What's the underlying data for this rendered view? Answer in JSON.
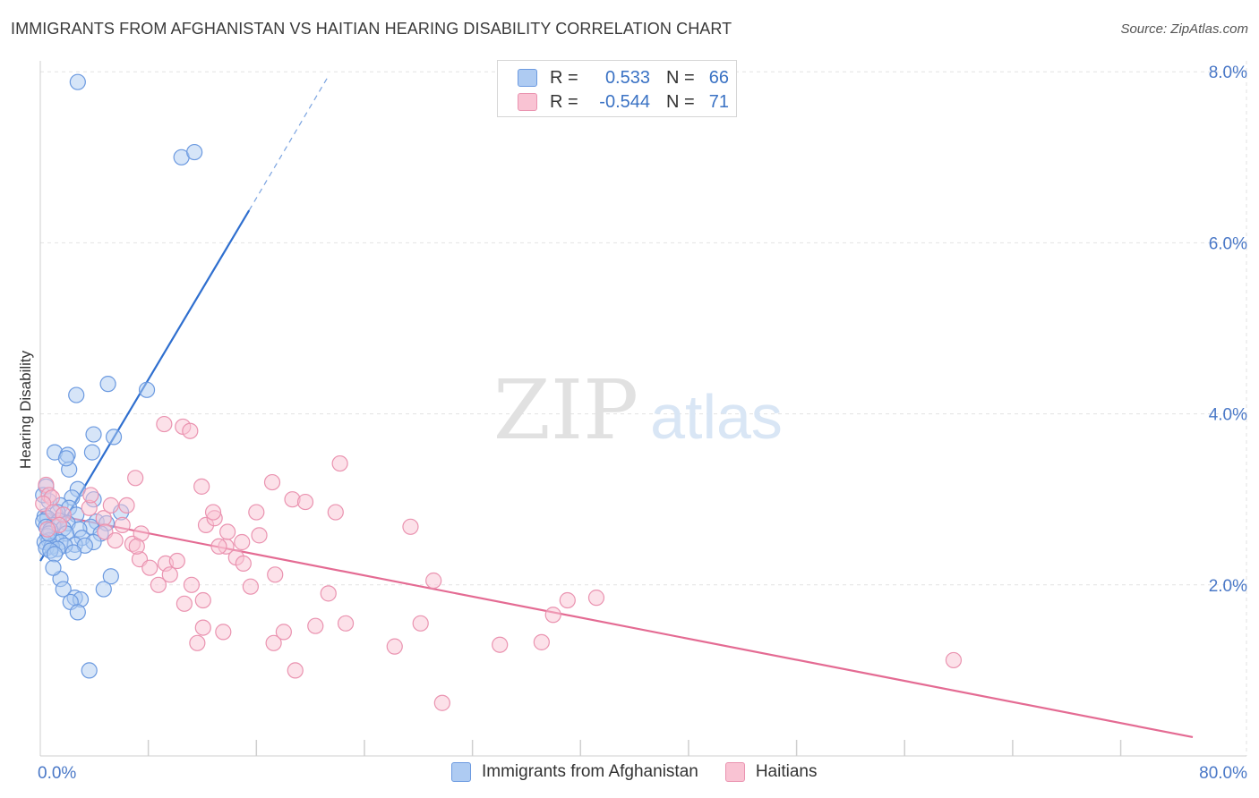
{
  "title": "IMMIGRANTS FROM AFGHANISTAN VS HAITIAN HEARING DISABILITY CORRELATION CHART",
  "source": "Source: ZipAtlas.com",
  "watermark": {
    "zip": "ZIP",
    "atlas": "atlas"
  },
  "legend": {
    "rows": [
      {
        "r_label": "R =",
        "r_value": "0.533",
        "n_label": "N =",
        "n_value": "66",
        "fill": "#aecbf2",
        "stroke": "#6c9ae0"
      },
      {
        "r_label": "R =",
        "r_value": "-0.544",
        "n_label": "N =",
        "n_value": "71",
        "fill": "#f9c3d3",
        "stroke": "#ea93b0"
      }
    ]
  },
  "chart_data": {
    "type": "scatter",
    "title": "IMMIGRANTS FROM AFGHANISTAN VS HAITIAN HEARING DISABILITY CORRELATION CHART",
    "xlabel": "",
    "ylabel": "Hearing Disability",
    "xlim": [
      0,
      80
    ],
    "ylim": [
      0,
      8.3
    ],
    "x_tick_labels": [
      {
        "value": 0,
        "label": "0.0%"
      },
      {
        "value": 80,
        "label": "80.0%"
      }
    ],
    "x_minor_ticks": [
      7.5,
      15,
      22.5,
      30,
      37.5,
      45,
      52.5,
      60,
      67.5,
      75
    ],
    "y_ticks": [
      {
        "value": 2,
        "label": "2.0%"
      },
      {
        "value": 4,
        "label": "4.0%"
      },
      {
        "value": 6,
        "label": "6.0%"
      },
      {
        "value": 8,
        "label": "8.0%"
      }
    ],
    "grid": true,
    "series": [
      {
        "name": "Immigrants from Afghanistan",
        "color": "#6c9ae0",
        "fill": "#aecbf2",
        "points": [
          [
            2.6,
            7.88
          ],
          [
            9.8,
            7.0
          ],
          [
            10.7,
            7.06
          ],
          [
            4.7,
            4.35
          ],
          [
            2.5,
            4.22
          ],
          [
            7.4,
            4.28
          ],
          [
            5.1,
            3.73
          ],
          [
            1.0,
            3.55
          ],
          [
            1.9,
            3.52
          ],
          [
            3.7,
            3.76
          ],
          [
            3.6,
            3.55
          ],
          [
            2.0,
            3.35
          ],
          [
            1.8,
            3.48
          ],
          [
            0.4,
            3.15
          ],
          [
            2.6,
            3.12
          ],
          [
            2.2,
            3.02
          ],
          [
            3.7,
            3.0
          ],
          [
            0.6,
            2.98
          ],
          [
            1.4,
            2.93
          ],
          [
            2.0,
            2.9
          ],
          [
            1.2,
            2.85
          ],
          [
            5.6,
            2.85
          ],
          [
            2.5,
            2.82
          ],
          [
            0.3,
            2.8
          ],
          [
            0.5,
            2.78
          ],
          [
            1.3,
            2.75
          ],
          [
            0.2,
            2.74
          ],
          [
            1.9,
            2.72
          ],
          [
            3.9,
            2.74
          ],
          [
            4.6,
            2.72
          ],
          [
            0.9,
            2.7
          ],
          [
            0.4,
            2.68
          ],
          [
            3.5,
            2.68
          ],
          [
            1.6,
            2.66
          ],
          [
            2.7,
            2.65
          ],
          [
            0.7,
            2.64
          ],
          [
            4.2,
            2.6
          ],
          [
            1.8,
            2.6
          ],
          [
            0.5,
            2.57
          ],
          [
            2.9,
            2.55
          ],
          [
            1.1,
            2.54
          ],
          [
            0.6,
            2.52
          ],
          [
            3.7,
            2.5
          ],
          [
            1.4,
            2.5
          ],
          [
            0.3,
            2.5
          ],
          [
            2.4,
            2.47
          ],
          [
            3.1,
            2.46
          ],
          [
            1.7,
            2.46
          ],
          [
            0.8,
            2.45
          ],
          [
            0.4,
            2.43
          ],
          [
            1.2,
            2.42
          ],
          [
            2.3,
            2.38
          ],
          [
            0.7,
            2.4
          ],
          [
            1.0,
            2.36
          ],
          [
            1.4,
            2.07
          ],
          [
            4.9,
            2.1
          ],
          [
            1.6,
            1.95
          ],
          [
            4.4,
            1.95
          ],
          [
            2.4,
            1.85
          ],
          [
            2.8,
            1.83
          ],
          [
            2.1,
            1.8
          ],
          [
            2.6,
            1.68
          ],
          [
            3.4,
            1.0
          ],
          [
            0.2,
            3.05
          ],
          [
            0.9,
            2.2
          ],
          [
            0.6,
            2.6
          ]
        ],
        "trend": {
          "x1": 0,
          "y1": 2.28,
          "x2": 14.5,
          "y2": 6.38,
          "dash_x2": 20.0,
          "dash_y2": 7.95
        }
      },
      {
        "name": "Haitians",
        "color": "#ea93b0",
        "fill": "#f9c3d3",
        "points": [
          [
            0.4,
            3.17
          ],
          [
            0.6,
            3.05
          ],
          [
            0.8,
            3.02
          ],
          [
            0.2,
            2.95
          ],
          [
            0.9,
            2.85
          ],
          [
            1.6,
            2.82
          ],
          [
            1.3,
            2.7
          ],
          [
            0.5,
            2.65
          ],
          [
            3.4,
            2.9
          ],
          [
            3.5,
            3.05
          ],
          [
            4.4,
            2.78
          ],
          [
            4.5,
            2.62
          ],
          [
            4.9,
            2.93
          ],
          [
            5.7,
            2.7
          ],
          [
            6.0,
            2.93
          ],
          [
            5.2,
            2.52
          ],
          [
            6.4,
            2.48
          ],
          [
            6.6,
            3.25
          ],
          [
            7.0,
            2.6
          ],
          [
            6.9,
            2.3
          ],
          [
            7.6,
            2.2
          ],
          [
            6.7,
            2.45
          ],
          [
            8.7,
            2.25
          ],
          [
            9.0,
            2.12
          ],
          [
            9.9,
            3.85
          ],
          [
            10.4,
            3.8
          ],
          [
            8.6,
            3.88
          ],
          [
            11.2,
            3.15
          ],
          [
            11.5,
            2.7
          ],
          [
            12.1,
            2.78
          ],
          [
            12.9,
            2.45
          ],
          [
            13.6,
            2.32
          ],
          [
            14.0,
            2.5
          ],
          [
            15.2,
            2.58
          ],
          [
            16.1,
            3.2
          ],
          [
            16.3,
            2.12
          ],
          [
            15.0,
            2.85
          ],
          [
            14.6,
            1.98
          ],
          [
            17.5,
            3.0
          ],
          [
            18.4,
            2.97
          ],
          [
            20.8,
            3.42
          ],
          [
            20.5,
            2.85
          ],
          [
            12.0,
            2.85
          ],
          [
            10.5,
            2.0
          ],
          [
            10.0,
            1.78
          ],
          [
            11.3,
            1.82
          ],
          [
            11.3,
            1.5
          ],
          [
            12.7,
            1.45
          ],
          [
            10.9,
            1.32
          ],
          [
            14.1,
            2.25
          ],
          [
            16.2,
            1.32
          ],
          [
            16.9,
            1.45
          ],
          [
            17.7,
            1.0
          ],
          [
            19.1,
            1.52
          ],
          [
            20.0,
            1.9
          ],
          [
            21.2,
            1.55
          ],
          [
            24.6,
            1.28
          ],
          [
            25.7,
            2.68
          ],
          [
            26.4,
            1.55
          ],
          [
            27.3,
            2.05
          ],
          [
            27.9,
            0.62
          ],
          [
            31.9,
            1.3
          ],
          [
            34.8,
            1.33
          ],
          [
            35.6,
            1.65
          ],
          [
            36.6,
            1.82
          ],
          [
            38.6,
            1.85
          ],
          [
            63.4,
            1.12
          ],
          [
            12.4,
            2.45
          ],
          [
            13.0,
            2.62
          ],
          [
            9.5,
            2.28
          ],
          [
            8.2,
            2.0
          ]
        ],
        "trend": {
          "x1": 0,
          "y1": 2.85,
          "x2": 80,
          "y2": 0.22
        }
      }
    ]
  }
}
